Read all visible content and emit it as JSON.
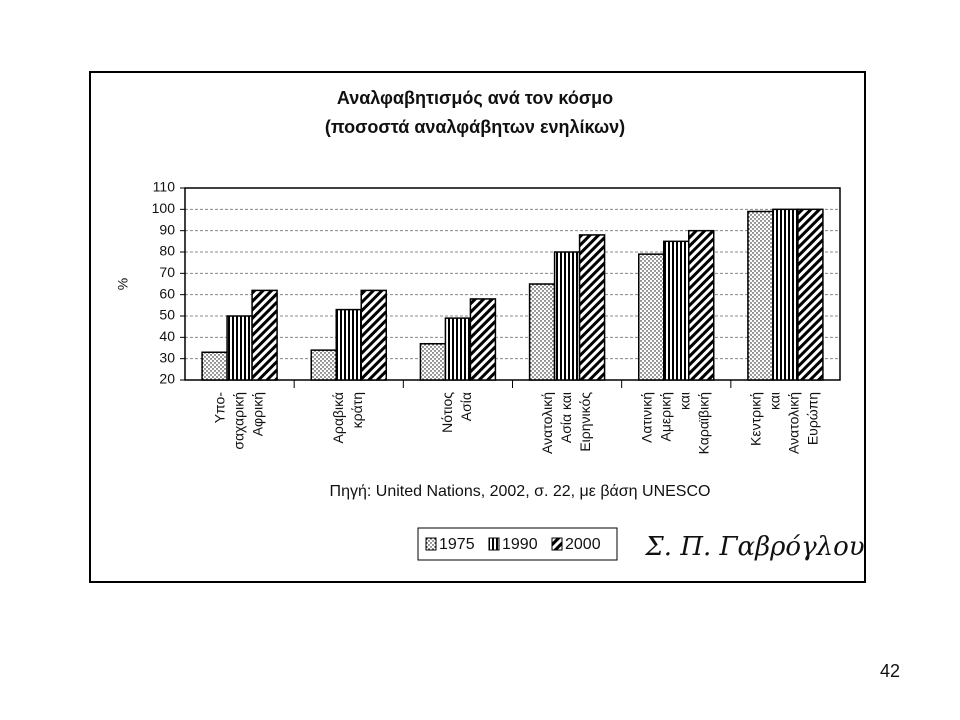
{
  "chart_data": {
    "type": "bar",
    "title": "Αναλφαβητισμός ανά τον κόσμο",
    "subtitle": "(ποσοστά αναλφάβητων ενηλίκων)",
    "y_label": "%",
    "categories": [
      [
        "Υπο-",
        "σαχαρική",
        "Αφρική"
      ],
      [
        "Αραβικά",
        "κράτη"
      ],
      [
        "Νότιος",
        "Ασία"
      ],
      [
        "Ανατολική",
        "Ασία και",
        "Ειρηνικός"
      ],
      [
        "Λατινική",
        "Αμερική",
        "και",
        "Καραϊβική"
      ],
      [
        "Κεντρική",
        "και",
        "Ανατολική",
        "Ευρώπη"
      ]
    ],
    "series": [
      {
        "name": "1975",
        "color": "#000000",
        "pattern": "dots",
        "values": [
          33,
          34,
          37,
          65,
          79,
          99
        ]
      },
      {
        "name": "1990",
        "color": "#000000",
        "pattern": "vertical",
        "values": [
          50,
          53,
          49,
          80,
          85,
          100
        ]
      },
      {
        "name": "2000",
        "color": "#000000",
        "pattern": "diagonal",
        "values": [
          62,
          62,
          58,
          88,
          90,
          100
        ]
      }
    ],
    "ylim": [
      20,
      110
    ],
    "yticks": [
      20,
      30,
      40,
      50,
      60,
      70,
      80,
      90,
      100,
      110
    ],
    "grid": true,
    "source": "Πηγή: United Nations, 2002, σ. 22, με βάση UNESCO",
    "signature": "Σ. Π. Γαβρόγλου",
    "page_number": "42"
  }
}
